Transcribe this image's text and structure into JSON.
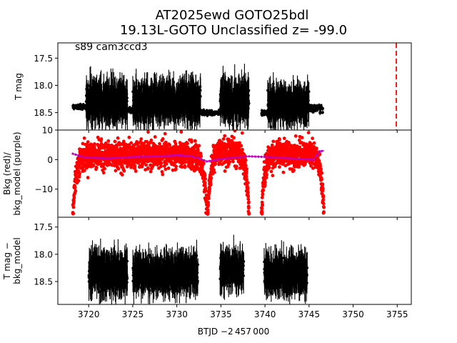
{
  "title_line1": "AT2025ewd  GOTO25bdl",
  "title_line2": "19.13L-GOTO Unclassified z= -99.0",
  "annotation": "s89 cam3ccd3",
  "xlabel": "BTJD −2 457 000",
  "colors": {
    "black": "#000000",
    "red": "#ff0000",
    "purple": "#bf00bf",
    "dashed_line": "#ff0000"
  },
  "chart_data": [
    {
      "type": "scatter",
      "panel": "top",
      "ylabel": "T mag",
      "xlim": [
        3716.5,
        3756.6
      ],
      "ylim": [
        18.82,
        17.22
      ],
      "inverted_y": true,
      "x_ticks": [
        3720,
        3725,
        3730,
        3735,
        3740,
        3745,
        3750,
        3755
      ],
      "y_ticks": [
        "17.5",
        "18.0",
        "18.5"
      ],
      "y_tick_values": [
        17.5,
        18.0,
        18.5
      ],
      "vertical_line": {
        "x": 3754.9,
        "style": "dashed",
        "color": "#ff0000"
      },
      "segments": [
        {
          "x_range": [
            3718.2,
            3719.7
          ],
          "baseline": 18.4,
          "scatter": 0.04,
          "errorbar": 0.03
        },
        {
          "x_range": [
            3719.7,
            3724.4
          ],
          "baseline": 18.3,
          "scatter": 0.22,
          "errorbar": 0.3
        },
        {
          "x_range": [
            3724.4,
            3725.0
          ],
          "baseline": 18.45,
          "scatter": 0.04,
          "errorbar": 0.04
        },
        {
          "x_range": [
            3725.0,
            3732.7
          ],
          "baseline": 18.3,
          "scatter": 0.22,
          "errorbar": 0.3
        },
        {
          "x_range": [
            3732.7,
            3734.9
          ],
          "baseline": 18.5,
          "scatter": 0.04,
          "errorbar": 0.03
        },
        {
          "x_range": [
            3734.9,
            3738.2
          ],
          "baseline": 18.3,
          "scatter": 0.22,
          "errorbar": 0.3
        },
        {
          "x_range": [
            3739.6,
            3740.3
          ],
          "baseline": 18.5,
          "scatter": 0.04,
          "errorbar": 0.03
        },
        {
          "x_range": [
            3740.3,
            3745.0
          ],
          "baseline": 18.35,
          "scatter": 0.2,
          "errorbar": 0.28
        },
        {
          "x_range": [
            3745.0,
            3746.6
          ],
          "baseline": 18.42,
          "scatter": 0.05,
          "errorbar": 0.04
        }
      ]
    },
    {
      "type": "scatter",
      "panel": "middle",
      "ylabel": "Bkg (red)/\nbkg_model (purple)",
      "xlim": [
        3716.5,
        3756.6
      ],
      "ylim": [
        -19.5,
        10
      ],
      "y_ticks": [
        "10",
        "0",
        "−10"
      ],
      "y_tick_values": [
        10,
        0,
        -10
      ],
      "series": [
        {
          "name": "Bkg",
          "color": "#ff0000",
          "orbits": [
            {
              "x_range": [
                3718.2,
                3733.4
              ],
              "plateau": 1.5,
              "edge_min": -18.5
            },
            {
              "x_range": [
                3733.5,
                3738.2
              ],
              "plateau": 3.0,
              "edge_min": -18.5
            },
            {
              "x_range": [
                3739.6,
                3746.7
              ],
              "plateau": 2.0,
              "edge_min": -18.5
            }
          ]
        },
        {
          "name": "bkg_model",
          "color": "#bf00bf",
          "points": [
            [
              3718.2,
              2.0
            ],
            [
              3719.5,
              0.8
            ],
            [
              3722,
              0.4
            ],
            [
              3725,
              0.9
            ],
            [
              3728,
              1.1
            ],
            [
              3730,
              1.5
            ],
            [
              3731.5,
              1.2
            ],
            [
              3732.5,
              0.5
            ],
            [
              3733.4,
              -0.6
            ],
            [
              3734,
              -0.3
            ],
            [
              3735,
              0.2
            ],
            [
              3736.5,
              0.7
            ],
            [
              3738.2,
              1.1
            ],
            [
              3741,
              0.8
            ],
            [
              3744,
              0.2
            ],
            [
              3745.5,
              0.0
            ],
            [
              3746.2,
              2.8
            ],
            [
              3746.7,
              3.0
            ]
          ]
        }
      ]
    },
    {
      "type": "scatter",
      "panel": "bottom",
      "ylabel": "T mag −\nbkg_model",
      "xlim": [
        3716.5,
        3756.6
      ],
      "ylim": [
        18.92,
        17.32
      ],
      "inverted_y": true,
      "x_ticks": [
        "3720",
        "3725",
        "3730",
        "3735",
        "3740",
        "3745",
        "3750",
        "3755"
      ],
      "x_tick_values": [
        3720,
        3725,
        3730,
        3735,
        3740,
        3745,
        3750,
        3755
      ],
      "y_ticks": [
        "17.5",
        "18.0",
        "18.5"
      ],
      "y_tick_values": [
        17.5,
        18.0,
        18.5
      ],
      "segments": [
        {
          "x_range": [
            3720.0,
            3724.4
          ],
          "baseline": 18.35,
          "scatter": 0.22,
          "errorbar": 0.3
        },
        {
          "x_range": [
            3725.0,
            3732.4
          ],
          "baseline": 18.35,
          "scatter": 0.2,
          "errorbar": 0.28
        },
        {
          "x_range": [
            3734.9,
            3737.6
          ],
          "baseline": 18.3,
          "scatter": 0.2,
          "errorbar": 0.28
        },
        {
          "x_range": [
            3739.9,
            3744.8
          ],
          "baseline": 18.35,
          "scatter": 0.2,
          "errorbar": 0.28
        }
      ]
    }
  ]
}
